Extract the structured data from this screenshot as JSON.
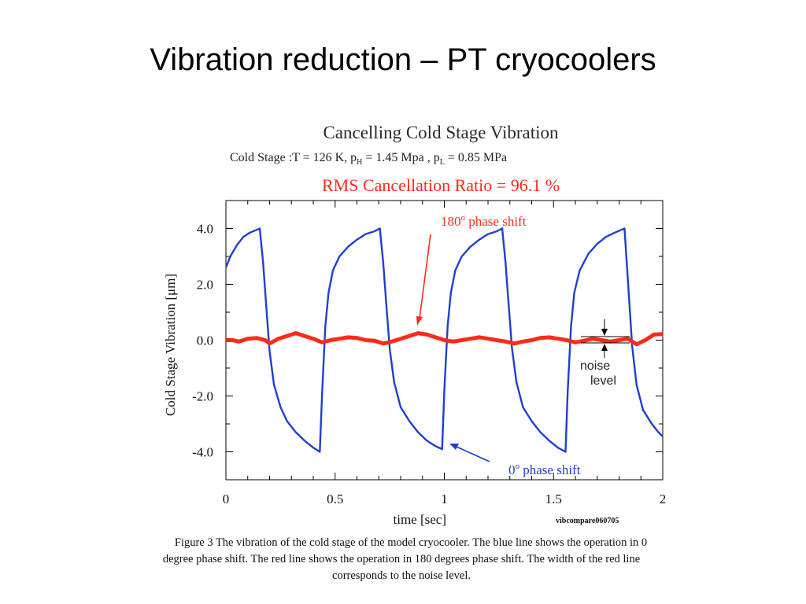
{
  "slide": {
    "title": "Vibration reduction – PT cryocoolers"
  },
  "figure": {
    "title": "Cancelling Cold Stage Vibration",
    "params": {
      "prefix": "Cold Stage :T = 126 K,  p",
      "sub_h": "H",
      "mid": " = 1.45 Mpa ,  p",
      "sub_l": "L",
      "suffix": " = 0.85 MPa"
    },
    "ratio": "RMS Cancellation Ratio = 96.1 %",
    "file_tag": "vibcompare060705",
    "caption_line1": "Figure 3 The vibration of the cold stage of the model cryocooler. The blue line shows the operation in 0",
    "caption_line2": "degree phase shift. The red line shows the operation in 180 degrees phase shift. The width of the red line",
    "caption_line3": "corresponds to the noise level."
  },
  "chart_data": {
    "type": "line",
    "xlabel": "time [sec]",
    "ylabel": "Cold Stage Vibration  [μm]",
    "xlim": [
      0,
      2
    ],
    "ylim": [
      -5,
      5
    ],
    "x_ticks": [
      "0",
      "0.5",
      "1",
      "1.5",
      "2"
    ],
    "y_ticks": [
      "4.0",
      "2.0",
      "0.0",
      "-2.0",
      "-4.0"
    ],
    "grid": false,
    "series": [
      {
        "name": "0° phase shift",
        "color": "#1f3fd1",
        "x": [
          0,
          0.02,
          0.05,
          0.08,
          0.11,
          0.14,
          0.155,
          0.17,
          0.185,
          0.2,
          0.22,
          0.25,
          0.28,
          0.32,
          0.36,
          0.4,
          0.43,
          0.44,
          0.455,
          0.47,
          0.49,
          0.52,
          0.56,
          0.6,
          0.64,
          0.68,
          0.705,
          0.72,
          0.735,
          0.75,
          0.77,
          0.8,
          0.84,
          0.88,
          0.92,
          0.96,
          0.99,
          1.0,
          1.015,
          1.03,
          1.05,
          1.08,
          1.12,
          1.16,
          1.2,
          1.24,
          1.265,
          1.28,
          1.295,
          1.31,
          1.33,
          1.36,
          1.4,
          1.44,
          1.48,
          1.52,
          1.555,
          1.565,
          1.58,
          1.595,
          1.62,
          1.66,
          1.7,
          1.74,
          1.78,
          1.81,
          1.825,
          1.84,
          1.86,
          1.88,
          1.91,
          1.95,
          1.98,
          2.0
        ],
        "y": [
          2.6,
          3.0,
          3.4,
          3.7,
          3.85,
          3.95,
          4.0,
          2.8,
          1.2,
          -0.4,
          -1.6,
          -2.4,
          -2.9,
          -3.3,
          -3.6,
          -3.85,
          -4.0,
          -2.0,
          0.5,
          1.7,
          2.5,
          3.0,
          3.35,
          3.6,
          3.8,
          3.9,
          4.0,
          2.8,
          1.2,
          -0.3,
          -1.5,
          -2.4,
          -2.9,
          -3.3,
          -3.6,
          -3.8,
          -3.9,
          -1.8,
          0.5,
          1.7,
          2.5,
          3.0,
          3.35,
          3.6,
          3.8,
          3.9,
          4.0,
          2.8,
          1.2,
          -0.3,
          -1.5,
          -2.4,
          -2.9,
          -3.3,
          -3.6,
          -3.85,
          -4.0,
          -1.8,
          0.5,
          1.7,
          2.5,
          3.1,
          3.45,
          3.7,
          3.85,
          3.95,
          4.0,
          2.2,
          -0.2,
          -1.6,
          -2.5,
          -3.0,
          -3.3,
          -3.45
        ]
      },
      {
        "name": "180° phase shift",
        "color": "#ff2a1a",
        "x": [
          0,
          0.03,
          0.06,
          0.1,
          0.14,
          0.18,
          0.2,
          0.24,
          0.28,
          0.32,
          0.36,
          0.4,
          0.44,
          0.48,
          0.52,
          0.56,
          0.6,
          0.64,
          0.68,
          0.72,
          0.76,
          0.8,
          0.84,
          0.88,
          0.92,
          0.96,
          1.0,
          1.04,
          1.08,
          1.12,
          1.16,
          1.2,
          1.24,
          1.28,
          1.32,
          1.36,
          1.4,
          1.44,
          1.48,
          1.52,
          1.56,
          1.6,
          1.64,
          1.68,
          1.72,
          1.76,
          1.8,
          1.84,
          1.88,
          1.92,
          1.96,
          2.0
        ],
        "y": [
          0.0,
          0.0,
          -0.05,
          0.05,
          0.08,
          0.0,
          -0.12,
          0.05,
          0.15,
          0.25,
          0.15,
          0.05,
          -0.08,
          0.0,
          0.05,
          0.1,
          0.08,
          0.0,
          -0.02,
          -0.12,
          -0.05,
          0.05,
          0.15,
          0.25,
          0.2,
          0.1,
          0.0,
          -0.05,
          0.0,
          0.05,
          0.1,
          0.05,
          0.0,
          -0.05,
          -0.12,
          -0.05,
          0.0,
          0.08,
          0.1,
          0.05,
          0.0,
          -0.08,
          -0.02,
          0.05,
          0.0,
          -0.05,
          0.0,
          0.05,
          -0.15,
          0.0,
          0.2,
          0.22
        ]
      }
    ],
    "annotations": [
      {
        "text": "180",
        "sup": "o",
        "rest": " phase shift",
        "color": "#ff2a1a"
      },
      {
        "text": "0",
        "sup": "o",
        "rest": " phase shift",
        "color": "#1f3fd1"
      },
      {
        "line1": "noise",
        "line2": "level",
        "color": "#222222"
      }
    ]
  }
}
